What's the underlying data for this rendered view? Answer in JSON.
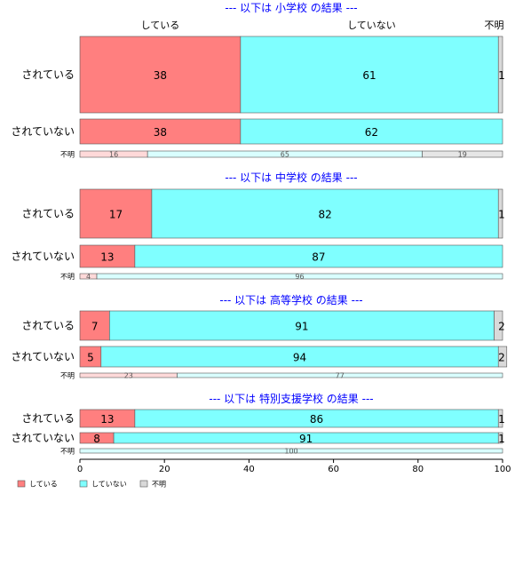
{
  "chart_data": {
    "type": "bar",
    "orientation": "horizontal",
    "stacked": "percent",
    "title": "",
    "xlabel": "",
    "ylabel": "",
    "xlim": [
      0,
      100
    ],
    "x_ticks": [
      0,
      20,
      40,
      60,
      80,
      100
    ],
    "series": [
      {
        "name": "している",
        "color": "#ff7f7f"
      },
      {
        "name": "していない",
        "color": "#7fffff"
      },
      {
        "name": "不明",
        "color": "#d9d9d9"
      }
    ],
    "column_headers": [
      "している",
      "していない",
      "不明"
    ],
    "panels": [
      {
        "heading": "--- 以下は 小学校 の結果 ---",
        "rows": [
          {
            "label": "されている",
            "values": [
              38,
              61,
              1
            ],
            "labels": [
              "38",
              "61",
              "1"
            ]
          },
          {
            "label": "されていない",
            "values": [
              38,
              62,
              0
            ],
            "labels": [
              "38",
              "62",
              ""
            ]
          },
          {
            "label": "不明",
            "values": [
              16,
              65,
              19
            ],
            "labels": [
              "16",
              "65",
              "19"
            ]
          }
        ]
      },
      {
        "heading": "--- 以下は 中学校 の結果 ---",
        "rows": [
          {
            "label": "されている",
            "values": [
              17,
              82,
              1
            ],
            "labels": [
              "17",
              "82",
              "1"
            ]
          },
          {
            "label": "されていない",
            "values": [
              13,
              87,
              0
            ],
            "labels": [
              "13",
              "87",
              ""
            ]
          },
          {
            "label": "不明",
            "values": [
              4,
              96,
              0
            ],
            "labels": [
              "4",
              "96",
              ""
            ]
          }
        ]
      },
      {
        "heading": "--- 以下は 高等学校 の結果 ---",
        "rows": [
          {
            "label": "されている",
            "values": [
              7,
              91,
              2
            ],
            "labels": [
              "7",
              "91",
              "2"
            ]
          },
          {
            "label": "されていない",
            "values": [
              5,
              94,
              2
            ],
            "labels": [
              "5",
              "94",
              "2"
            ]
          },
          {
            "label": "不明",
            "values": [
              23,
              77,
              0
            ],
            "labels": [
              "23",
              "77",
              ""
            ]
          }
        ]
      },
      {
        "heading": "--- 以下は 特別支援学校 の結果 ---",
        "rows": [
          {
            "label": "されている",
            "values": [
              13,
              86,
              1
            ],
            "labels": [
              "13",
              "86",
              "1"
            ]
          },
          {
            "label": "されていない",
            "values": [
              8,
              91,
              1
            ],
            "labels": [
              "8",
              "91",
              "1"
            ]
          },
          {
            "label": "不明",
            "values": [
              0,
              100,
              0
            ],
            "labels": [
              "",
              "100",
              ""
            ]
          }
        ]
      }
    ],
    "legend": {
      "position": "bottom-left",
      "entries": [
        "している",
        "していない",
        "不明"
      ]
    },
    "grid": false
  }
}
